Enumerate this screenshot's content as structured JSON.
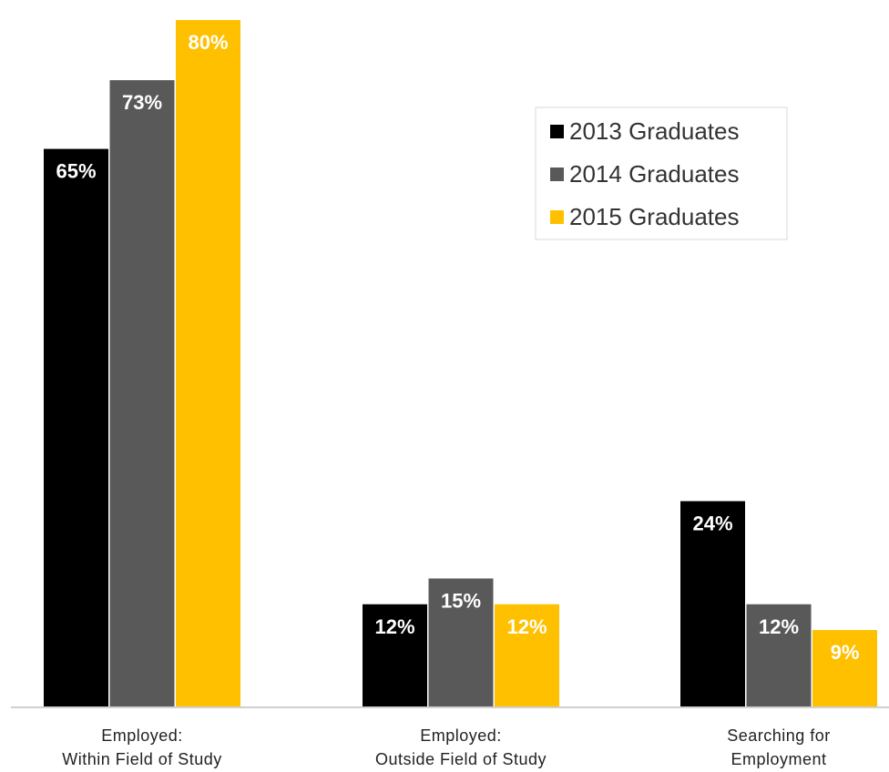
{
  "chart_data": {
    "type": "bar",
    "categories": [
      [
        "Employed:",
        "Within Field of Study"
      ],
      [
        "Employed:",
        "Outside Field of Study"
      ],
      [
        "Searching for",
        "Employment"
      ]
    ],
    "series": [
      {
        "name": "2013 Graduates",
        "color": "#000000",
        "values": [
          65,
          12,
          24
        ],
        "labels": [
          "65%",
          "12%",
          "24%"
        ]
      },
      {
        "name": "2014 Graduates",
        "color": "#595959",
        "values": [
          73,
          15,
          12
        ],
        "labels": [
          "73%",
          "15%",
          "12%"
        ]
      },
      {
        "name": "2015 Graduates",
        "color": "#ffc000",
        "values": [
          80,
          12,
          9
        ],
        "labels": [
          "80%",
          "12%",
          "9%"
        ]
      }
    ],
    "ylim": [
      0,
      80
    ],
    "legend_position": "top-right",
    "grid": false,
    "title": "",
    "xlabel": "",
    "ylabel": ""
  }
}
